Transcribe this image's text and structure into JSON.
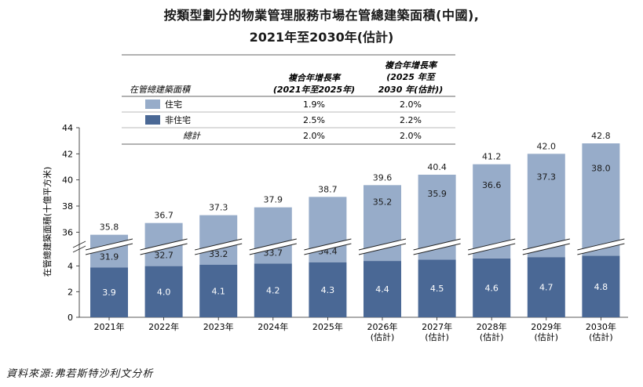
{
  "title": {
    "line1": "按類型劃分的物業管理服務市場在管總建築面積(中國),",
    "line2": "2021年至2030年(估計)"
  },
  "source": "資料來源:弗若斯特沙利文分析",
  "table": {
    "header_label": "在管總建築面積",
    "col1_header_line1": "複合年增長率",
    "col1_header_line2": "(2021年至2025年)",
    "col2_header_line1": "複合年增長率",
    "col2_header_line2": "(2025 年至",
    "col2_header_line3": "2030 年(估計))",
    "rows": [
      {
        "label": "住宅",
        "cagr1": "1.9%",
        "cagr2": "2.0%",
        "color": "#97acc9"
      },
      {
        "label": "非住宅",
        "cagr1": "2.5%",
        "cagr2": "2.2%",
        "color": "#4a6895"
      },
      {
        "label": "總計",
        "cagr1": "2.0%",
        "cagr2": "2.0%"
      }
    ]
  },
  "chart_data": {
    "type": "bar",
    "stacked": true,
    "categories": [
      [
        "2021年"
      ],
      [
        "2022年"
      ],
      [
        "2023年"
      ],
      [
        "2024年"
      ],
      [
        "2025年"
      ],
      [
        "2026年",
        "(估計)"
      ],
      [
        "2027年",
        "(估計)"
      ],
      [
        "2028年",
        "(估計)"
      ],
      [
        "2029年",
        "(估計)"
      ],
      [
        "2030年",
        "(估計)"
      ]
    ],
    "series": [
      {
        "name": "非住宅",
        "color": "#4a6895",
        "values": [
          3.9,
          4.0,
          4.1,
          4.2,
          4.3,
          4.4,
          4.5,
          4.6,
          4.7,
          4.8
        ]
      },
      {
        "name": "住宅",
        "color": "#97acc9",
        "values": [
          31.9,
          32.7,
          33.2,
          33.7,
          34.4,
          35.2,
          35.9,
          36.6,
          37.3,
          38.0
        ]
      }
    ],
    "totals": [
      35.8,
      36.7,
      37.3,
      37.9,
      38.7,
      39.6,
      40.4,
      41.2,
      42.0,
      42.8
    ],
    "ylabel": "在管總建築面積(十億平方米)",
    "y_axis_broken": true,
    "y_ticks_lower": [
      0,
      2,
      4
    ],
    "y_ticks_upper": [
      36,
      38,
      40,
      42,
      44
    ],
    "ylim_lower": [
      0,
      5.2
    ],
    "ylim_upper": [
      35,
      44
    ]
  }
}
